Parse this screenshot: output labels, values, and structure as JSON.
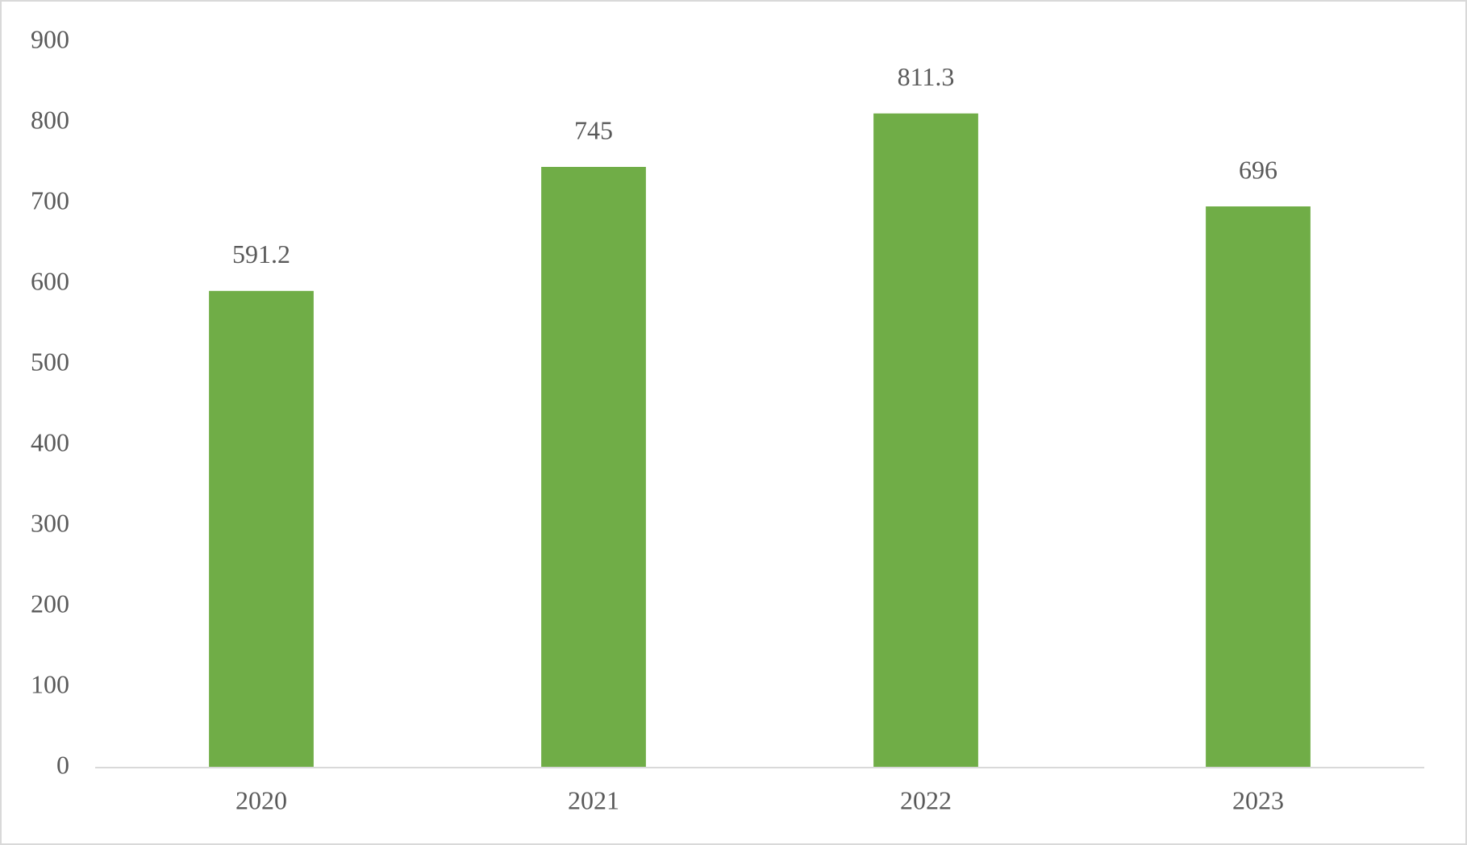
{
  "chart_data": {
    "type": "bar",
    "categories": [
      "2020",
      "2021",
      "2022",
      "2023"
    ],
    "values": [
      591.2,
      745,
      811.3,
      696
    ],
    "color": "#70ad47",
    "ylim": [
      0,
      900
    ],
    "yticks": [
      0,
      100,
      200,
      300,
      400,
      500,
      600,
      700,
      800,
      900
    ],
    "grid": false
  }
}
